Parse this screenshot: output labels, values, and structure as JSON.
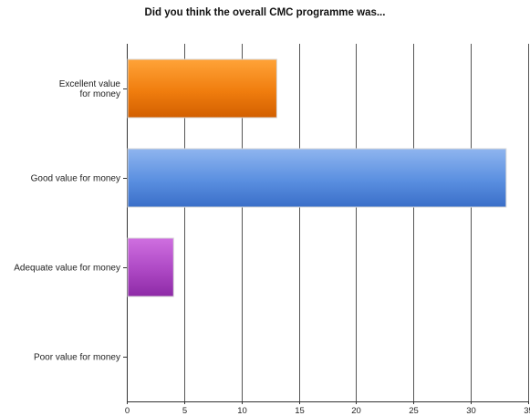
{
  "chart_data": {
    "type": "bar",
    "orientation": "horizontal",
    "title": "Did you think the overall CMC programme was...",
    "categories": [
      [
        "Excellent value",
        "for money"
      ],
      [
        "Good value for money"
      ],
      [
        "Adequate value for money"
      ],
      [
        "Poor value for money"
      ]
    ],
    "values": [
      13,
      33,
      4,
      0
    ],
    "bar_colors": [
      "#f07d0e",
      "#4f86d9",
      "#a239b8",
      "#999999"
    ],
    "xlim": [
      0,
      35
    ],
    "xticks": [
      0,
      5,
      10,
      15,
      20,
      25,
      30,
      35
    ],
    "grid": true
  }
}
